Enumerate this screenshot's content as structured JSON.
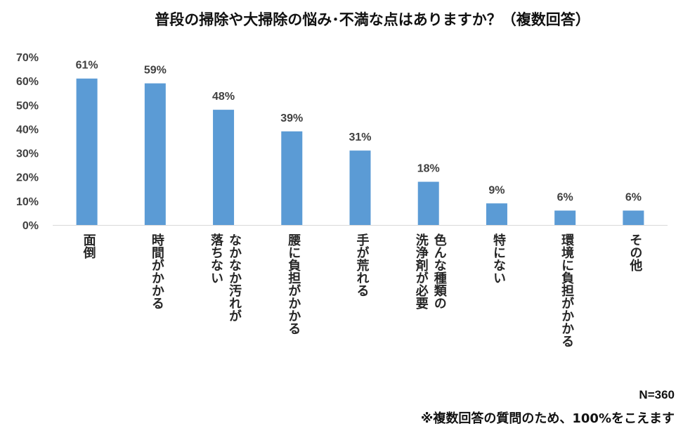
{
  "chart_data": {
    "type": "bar",
    "title": "普段の掃除や大掃除の悩み･不満な点はありますか？（複数回答）",
    "categories": [
      "面\n倒",
      "時\n間\nが\nか\nか\nる",
      "な\nか\nな\nか\n汚\nれ\nが\n\n落\nち\nな\nい",
      "腰\nに\n負\n担\nが\nか\nか\nる",
      "手\nが\n荒\nれ\nる",
      "色\nん\nな\n種\n類\nの\n\n洗\n浄\n剤\nが\n必\n要",
      "特\nに\nな\nい",
      "環\n境\nに\n負\n担\nが\nか\nか\nる",
      "そ\nの\n他"
    ],
    "values": [
      61,
      59,
      48,
      39,
      31,
      18,
      9,
      6,
      6
    ],
    "value_labels": [
      "61%",
      "59%",
      "48%",
      "39%",
      "31%",
      "18%",
      "9%",
      "6%",
      "6%"
    ],
    "y_ticks": [
      "0%",
      "10%",
      "20%",
      "30%",
      "40%",
      "50%",
      "60%",
      "70%"
    ],
    "ylim": [
      0,
      70
    ],
    "grid": false,
    "bar_color": "#5b9bd5",
    "axis_color": "#d9d9d9"
  },
  "notes": {
    "sample_size": "N=360",
    "disclaimer": "※複数回答の質問のため、100%をこえます"
  }
}
